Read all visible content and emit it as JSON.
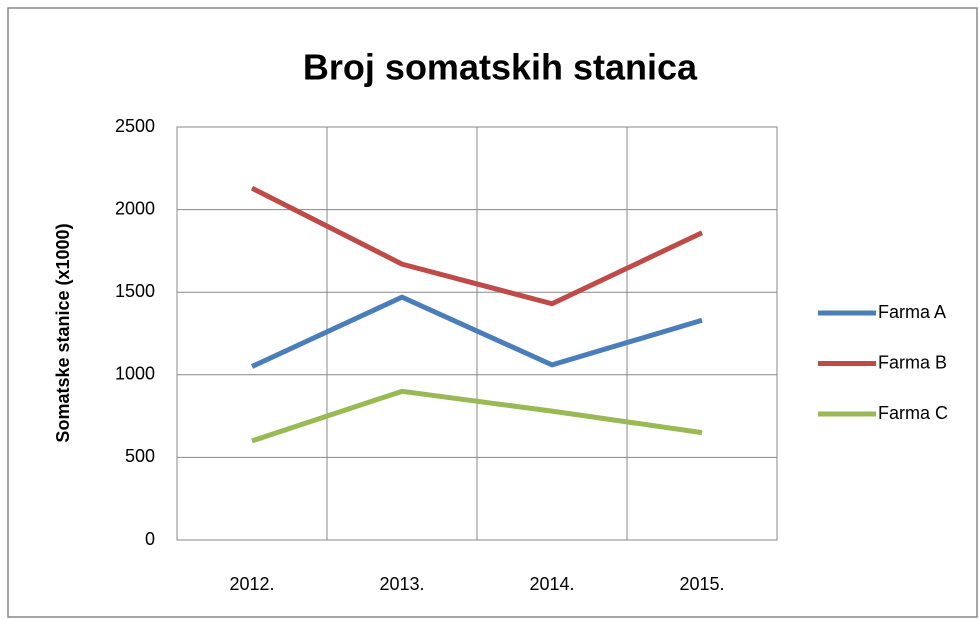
{
  "chart_data": {
    "type": "line",
    "title": "Broj somatskih stanica",
    "y_label": "Somatske stanice (x1000)",
    "categories": [
      "2012.",
      "2013.",
      "2014.",
      "2015."
    ],
    "series": [
      {
        "name": "Farma A",
        "color": "#4a7ebb",
        "values": [
          1050,
          1470,
          1060,
          1330
        ]
      },
      {
        "name": "Farma B",
        "color": "#be4b48",
        "values": [
          2130,
          1670,
          1430,
          1860
        ]
      },
      {
        "name": "Farma C",
        "color": "#98b954",
        "values": [
          600,
          900,
          780,
          650
        ]
      }
    ],
    "ylim": [
      0,
      2500
    ],
    "yticks": [
      0,
      500,
      1000,
      1500,
      2000,
      2500
    ],
    "grid": true,
    "legend": "right"
  }
}
